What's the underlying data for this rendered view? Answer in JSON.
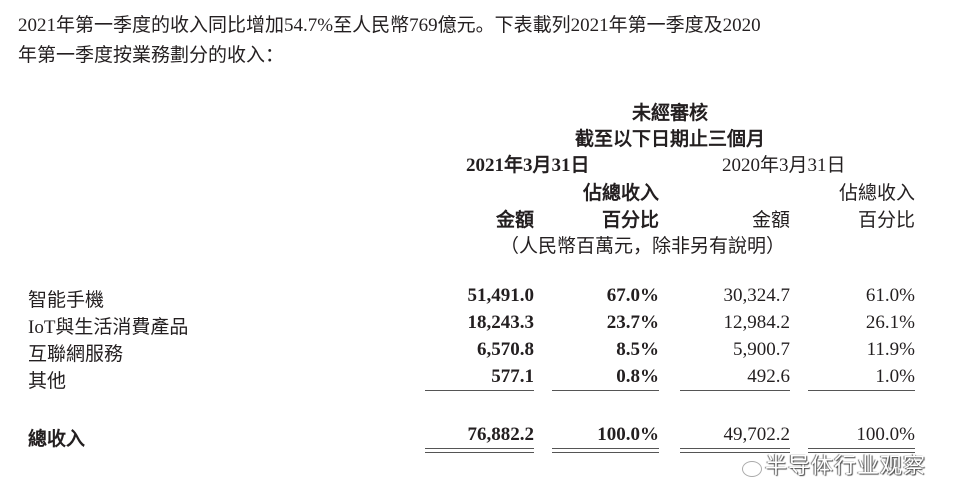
{
  "intro": {
    "line1": "2021年第一季度的收入同比增加54.7%至人民幣769億元。下表載列2021年第一季度及2020",
    "line2": "年第一季度按業務劃分的收入："
  },
  "header": {
    "unaudited": "未經審核",
    "period": "截至以下日期止三個月",
    "date2021": "2021年3月31日",
    "date2020": "2020年3月31日",
    "pct_top": "佔總收入",
    "amount": "金額",
    "pct_bottom": "百分比",
    "unit_note": "（人民幣百萬元，除非另有說明）"
  },
  "rows": [
    {
      "label": "智能手機",
      "a2021": "51,491.0",
      "p2021": "67.0%",
      "a2020": "30,324.7",
      "p2020": "61.0%"
    },
    {
      "label": "IoT與生活消費產品",
      "a2021": "18,243.3",
      "p2021": "23.7%",
      "a2020": "12,984.2",
      "p2020": "26.1%"
    },
    {
      "label": "互聯網服務",
      "a2021": "6,570.8",
      "p2021": "8.5%",
      "a2020": "5,900.7",
      "p2020": "11.9%"
    },
    {
      "label": "其他",
      "a2021": "577.1",
      "p2021": "0.8%",
      "a2020": "492.6",
      "p2020": "1.0%"
    }
  ],
  "total": {
    "label": "總收入",
    "a2021": "76,882.2",
    "p2021": "100.0%",
    "a2020": "49,702.2",
    "p2020": "100.0%"
  },
  "watermark": "半导体行业观察"
}
